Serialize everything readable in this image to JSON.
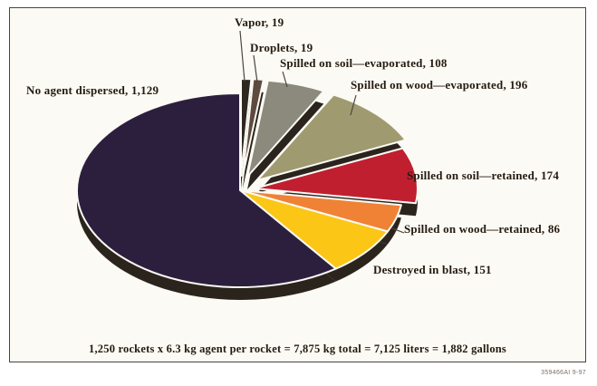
{
  "chart_data": {
    "type": "pie",
    "title": "",
    "unit": "gallons",
    "total": 1882,
    "background_color": "#fbfaf4",
    "side_color": "#2b241d",
    "label_color": "#241a10",
    "slices": [
      {
        "id": "vapor",
        "label": "Vapor",
        "value": 19,
        "display": "Vapor, 19",
        "color": "#2e2620"
      },
      {
        "id": "droplets",
        "label": "Droplets",
        "value": 19,
        "display": "Droplets, 19",
        "color": "#5f4a40"
      },
      {
        "id": "soil-evaporated",
        "label": "Spilled on soil—evaporated",
        "value": 108,
        "display": "Spilled on soil—evaporated, 108",
        "color": "#8c897d"
      },
      {
        "id": "wood-evaporated",
        "label": "Spilled on wood—evaporated",
        "value": 196,
        "display": "Spilled on wood—evaporated, 196",
        "color": "#9f9a70"
      },
      {
        "id": "soil-retained",
        "label": "Spilled on soil—retained",
        "value": 174,
        "display": "Spilled on soil—retained, 174",
        "color": "#c01f30"
      },
      {
        "id": "wood-retained",
        "label": "Spilled on wood—retained",
        "value": 86,
        "display": "Spilled on wood—retained, 86",
        "color": "#f08236"
      },
      {
        "id": "destroyed",
        "label": "Destroyed in blast",
        "value": 151,
        "display": "Destroyed in blast, 151",
        "color": "#fbc616"
      },
      {
        "id": "no-agent",
        "label": "No agent dispersed",
        "value": 1129,
        "display": "No agent dispersed, 1,129",
        "color": "#2c1f3e"
      }
    ],
    "legend_position": "callout-labels",
    "start_angle_deg": 0,
    "direction": "clockwise"
  },
  "footnote": "1,250 rockets x 6.3 kg agent per rocket = 7,875 kg total = 7,125 liters = 1,882 gallons",
  "figure_code": "359466AI 9-97"
}
